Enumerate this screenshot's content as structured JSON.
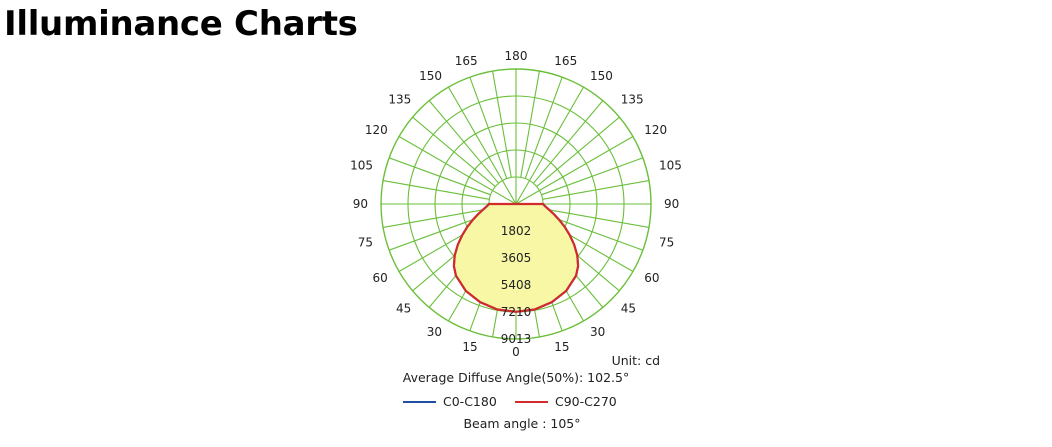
{
  "page": {
    "title": "Illuminance Charts"
  },
  "chart_data": {
    "type": "polar",
    "unit_label": "Unit: cd",
    "average_diffuse_angle": "Average Diffuse Angle(50%): 102.5°",
    "beam_angle": "Beam angle : 105°",
    "angle_labels": [
      "0",
      "15",
      "30",
      "45",
      "60",
      "75",
      "90",
      "105",
      "120",
      "135",
      "150",
      "165",
      "180"
    ],
    "radial_values": [
      1802,
      3605,
      5408,
      7210,
      9013
    ],
    "radial_labels": [
      "1802",
      "3605",
      "5408",
      "7210",
      "9013"
    ],
    "max_value": 9013,
    "series": [
      {
        "name": "C0-C180",
        "color": "#1f4fa3",
        "angles": [
          0,
          10,
          20,
          30,
          40,
          45,
          50,
          55,
          60,
          65,
          70,
          75,
          80,
          85,
          90
        ],
        "values": [
          7200,
          7150,
          6980,
          6700,
          6240,
          5860,
          5340,
          4740,
          4140,
          3580,
          3060,
          2620,
          2260,
          1980,
          1802
        ]
      },
      {
        "name": "C90-C270",
        "color": "#d22b2b",
        "angles": [
          0,
          10,
          20,
          30,
          40,
          45,
          50,
          55,
          60,
          65,
          70,
          75,
          80,
          85,
          90
        ],
        "values": [
          7200,
          7150,
          6980,
          6700,
          6240,
          5860,
          5340,
          4740,
          4140,
          3580,
          3060,
          2620,
          2260,
          1980,
          1802
        ]
      }
    ],
    "colors": {
      "grid": "#6abf3a",
      "fill": "#f7f7a6"
    }
  }
}
